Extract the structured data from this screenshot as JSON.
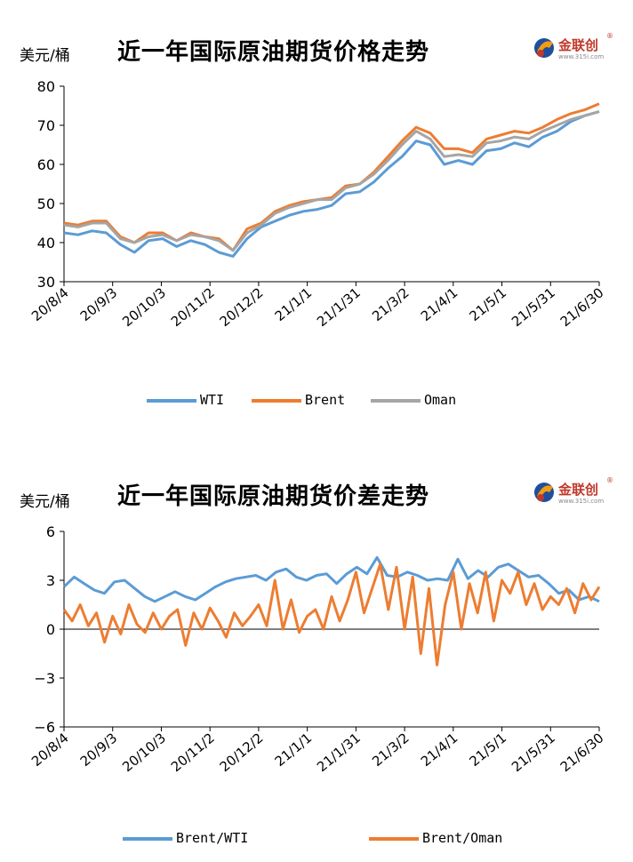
{
  "chart_data": [
    {
      "type": "line",
      "title": "近一年国际原油期货价格走势",
      "ylabel": "美元/桶",
      "xlabel": "",
      "ylim": [
        30,
        80
      ],
      "yticks": [
        30,
        40,
        50,
        60,
        70,
        80
      ],
      "xtick_labels": [
        "20/8/4",
        "20/9/3",
        "20/10/3",
        "20/11/2",
        "20/12/2",
        "21/1/1",
        "21/1/31",
        "21/3/2",
        "21/4/1",
        "21/5/1",
        "21/5/31",
        "21/6/30"
      ],
      "grid": false,
      "legend_position": "bottom",
      "series": [
        {
          "name": "WTI",
          "color": "#5b9bd5",
          "values": [
            42.5,
            42.0,
            43.0,
            42.5,
            39.5,
            37.5,
            40.5,
            41.0,
            39.0,
            40.5,
            39.5,
            37.5,
            36.5,
            41.0,
            44.0,
            45.5,
            47.0,
            48.0,
            48.5,
            49.5,
            52.5,
            53.0,
            55.5,
            59.0,
            62.0,
            66.0,
            65.0,
            60.0,
            61.0,
            60.0,
            63.5,
            64.0,
            65.5,
            64.5,
            67.0,
            68.5,
            71.0,
            72.5,
            73.5
          ]
        },
        {
          "name": "Brent",
          "color": "#ed7d31",
          "values": [
            45.0,
            44.5,
            45.5,
            45.5,
            41.5,
            40.0,
            42.5,
            42.5,
            40.5,
            42.5,
            41.5,
            41.0,
            38.0,
            43.5,
            45.0,
            48.0,
            49.5,
            50.5,
            51.0,
            51.5,
            54.5,
            55.0,
            58.0,
            62.0,
            66.0,
            69.5,
            68.0,
            64.0,
            64.0,
            63.0,
            66.5,
            67.5,
            68.5,
            68.0,
            69.5,
            71.5,
            73.0,
            74.0,
            75.5
          ]
        },
        {
          "name": "Oman",
          "color": "#a5a5a5",
          "values": [
            44.5,
            44.0,
            45.0,
            45.0,
            41.0,
            40.0,
            41.5,
            42.0,
            40.5,
            42.0,
            41.5,
            40.5,
            38.0,
            42.5,
            44.5,
            47.5,
            49.0,
            50.0,
            51.0,
            51.0,
            54.0,
            55.0,
            57.5,
            61.0,
            65.0,
            68.5,
            66.5,
            62.0,
            62.5,
            62.0,
            65.5,
            66.0,
            67.0,
            66.5,
            68.5,
            70.0,
            71.5,
            72.5,
            73.5
          ]
        }
      ]
    },
    {
      "type": "line",
      "title": "近一年国际原油期货价差走势",
      "ylabel": "美元/桶",
      "xlabel": "",
      "ylim": [
        -6,
        6
      ],
      "yticks": [
        6,
        3,
        0,
        -3,
        -6
      ],
      "ytick_labels": [
        "6",
        "3",
        "0",
        "−3",
        "−6"
      ],
      "xtick_labels": [
        "20/8/4",
        "20/9/3",
        "20/10/3",
        "20/11/2",
        "20/12/2",
        "21/1/1",
        "21/1/31",
        "21/3/2",
        "21/4/1",
        "21/5/1",
        "21/5/31",
        "21/6/30"
      ],
      "grid": false,
      "legend_position": "bottom",
      "series": [
        {
          "name": "Brent/WTI",
          "color": "#5b9bd5",
          "values": [
            2.6,
            3.2,
            2.8,
            2.4,
            2.2,
            2.9,
            3.0,
            2.5,
            2.0,
            1.7,
            2.0,
            2.3,
            2.0,
            1.8,
            2.2,
            2.6,
            2.9,
            3.1,
            3.2,
            3.3,
            3.0,
            3.5,
            3.7,
            3.2,
            3.0,
            3.3,
            3.4,
            2.8,
            3.4,
            3.8,
            3.4,
            4.4,
            3.3,
            3.2,
            3.5,
            3.3,
            3.0,
            3.1,
            3.0,
            4.3,
            3.1,
            3.6,
            3.2,
            3.8,
            4.0,
            3.6,
            3.2,
            3.3,
            2.8,
            2.2,
            2.4,
            1.8,
            2.0,
            1.7
          ]
        },
        {
          "name": "Brent/Oman",
          "color": "#ed7d31",
          "values": [
            1.2,
            0.5,
            1.5,
            0.2,
            1.0,
            -0.8,
            0.8,
            -0.3,
            1.5,
            0.3,
            -0.2,
            1.0,
            0.0,
            0.8,
            1.2,
            -1.0,
            1.0,
            0.0,
            1.3,
            0.5,
            -0.5,
            1.0,
            0.2,
            0.8,
            1.5,
            0.2,
            3.0,
            0.0,
            1.8,
            -0.2,
            0.8,
            1.2,
            0.0,
            2.0,
            0.5,
            1.8,
            3.5,
            1.0,
            2.5,
            4.0,
            1.2,
            3.8,
            0.0,
            3.2,
            -1.5,
            2.5,
            -2.2,
            1.5,
            3.5,
            0.0,
            2.8,
            1.0,
            3.5,
            0.5,
            3.0,
            2.2,
            3.5,
            1.5,
            2.8,
            1.2,
            2.0,
            1.5,
            2.5,
            1.0,
            2.8,
            1.8,
            2.6
          ]
        }
      ]
    }
  ],
  "logo": {
    "text": "金联创",
    "sub": "www.315i.com",
    "reg": "®"
  }
}
